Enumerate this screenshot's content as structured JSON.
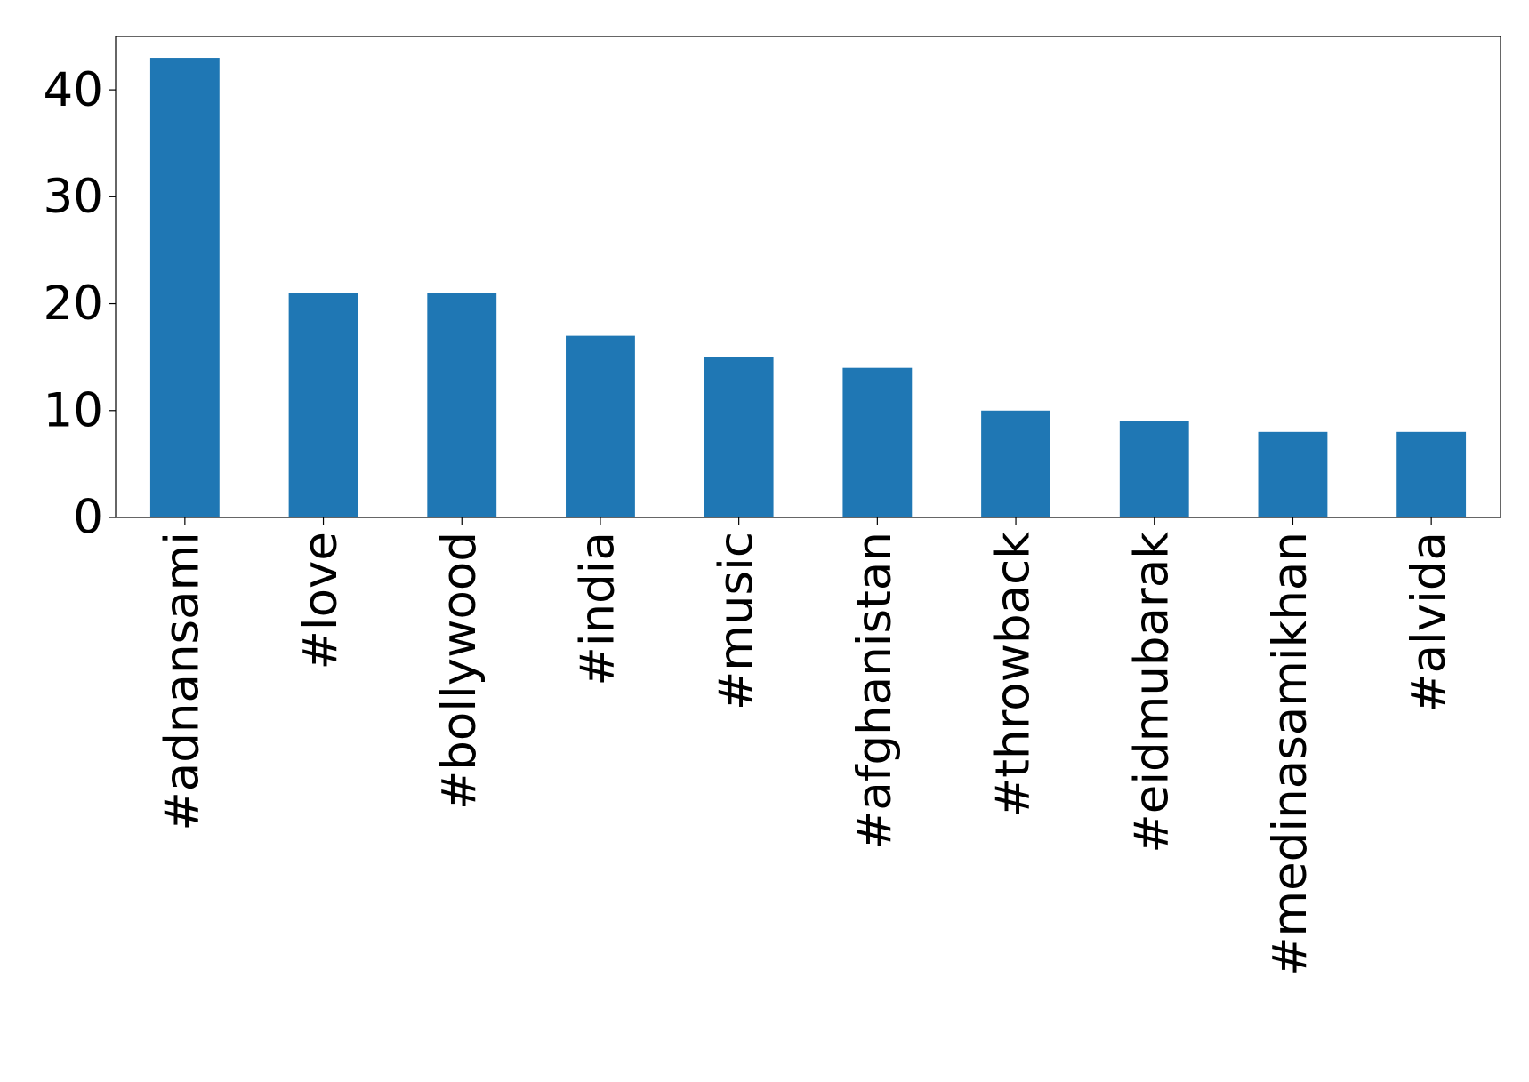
{
  "chart_data": {
    "type": "bar",
    "categories": [
      "#adnansami",
      "#love",
      "#bollywood",
      "#india",
      "#music",
      "#afghanistan",
      "#throwback",
      "#eidmubarak",
      "#medinasamikhan",
      "#alvida"
    ],
    "values": [
      43,
      21,
      21,
      17,
      15,
      14,
      10,
      9,
      8,
      8
    ],
    "color": "#1f77b4",
    "ylim": [
      0,
      45
    ],
    "yticks": [
      0,
      10,
      20,
      30,
      40
    ],
    "grid": false
  }
}
